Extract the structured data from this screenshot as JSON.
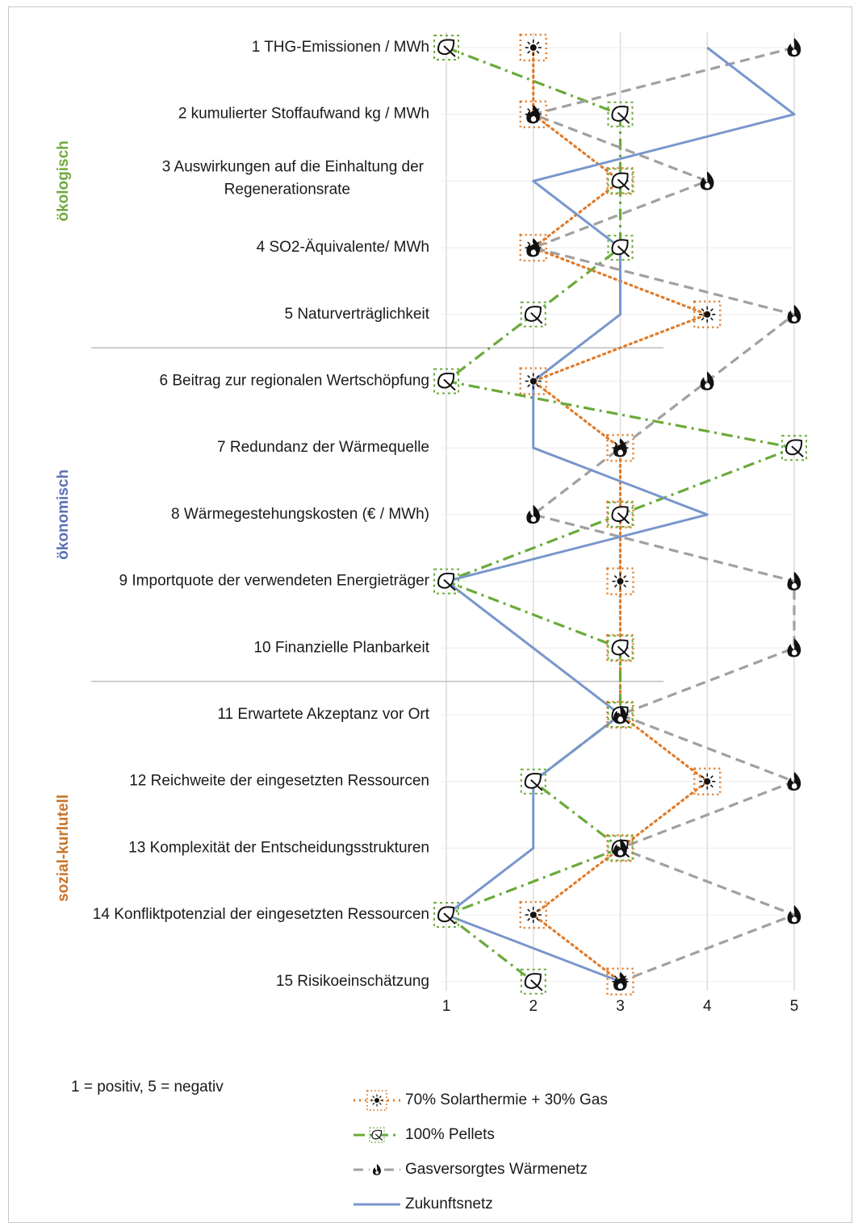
{
  "chart_data": {
    "type": "line",
    "orientation": "horizontal-values-vertical-categories",
    "categories": [
      "1 THG-Emissionen / MWh",
      "2 kumulierter Stoffaufwand kg / MWh",
      "3 Auswirkungen auf die Einhaltung der\nRegenerationsrate",
      "4 SO2-Äquivalente/ MWh",
      "5 Naturverträglichkeit",
      "6 Beitrag zur regionalen Wertschöpfung",
      "7 Redundanz der Wärmequelle",
      "8 Wärmegestehungskosten (€ / MWh)",
      "9 Importquote der verwendeten Energieträger",
      "10 Finanzielle Planbarkeit",
      "11 Erwartete Akzeptanz vor Ort",
      "12 Reichweite der eingesetzten Ressourcen",
      "13 Komplexität der Entscheidungsstrukturen",
      "14 Konfliktpotenzial der eingesetzten Ressourcen",
      "15 Risikoeinschätzung"
    ],
    "xticks": [
      "1",
      "2",
      "3",
      "4",
      "5"
    ],
    "xlim": [
      1,
      5
    ],
    "groups": [
      {
        "label": "ökologisch",
        "color": "#70a83e",
        "from": 1,
        "to": 5
      },
      {
        "label": "ökonomisch",
        "color": "#5b6fb5",
        "from": 6,
        "to": 10
      },
      {
        "label": "sozial-kurlutell",
        "color": "#c9742a",
        "from": 11,
        "to": 15
      }
    ],
    "series": [
      {
        "name": "70% Solarthermie + 30% Gas",
        "color": "#e07b2a",
        "style": "dotted",
        "marker": "sun-icon",
        "values": [
          2,
          2,
          3,
          2,
          4,
          2,
          3,
          3,
          3,
          3,
          3,
          4,
          3,
          2,
          3
        ]
      },
      {
        "name": "100% Pellets",
        "color": "#6aaa3a",
        "style": "dashdot",
        "marker": "leaf-icon",
        "values": [
          1,
          3,
          3,
          3,
          2,
          1,
          5,
          3,
          1,
          3,
          3,
          2,
          3,
          1,
          2
        ]
      },
      {
        "name": "Gasversorgtes Wärmenetz",
        "color": "#a0a0a0",
        "style": "dashed",
        "marker": "flame-icon",
        "values": [
          5,
          2,
          4,
          2,
          5,
          4,
          3,
          2,
          5,
          5,
          3,
          5,
          3,
          5,
          3
        ]
      },
      {
        "name": "Zukunftsnetz",
        "color": "#7896cc",
        "style": "solid",
        "marker": "none",
        "values": [
          4,
          5,
          2,
          3,
          3,
          2,
          2,
          4,
          1,
          2,
          3,
          2,
          2,
          1,
          3
        ]
      }
    ],
    "note": "1 = positiv, 5 = negativ",
    "grid": true,
    "legend_position": "bottom"
  }
}
